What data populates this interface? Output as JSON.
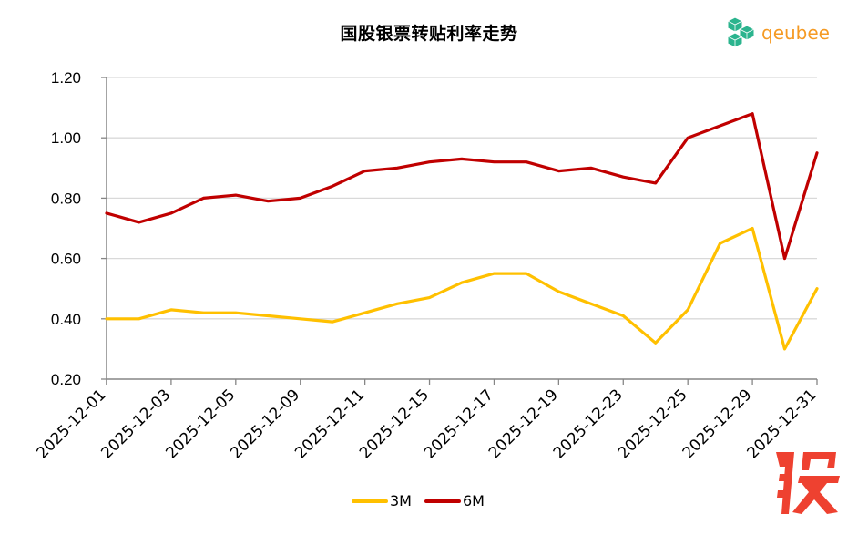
{
  "header": {
    "title": "国股银票转贴利率走势",
    "brand_name": "qeubee",
    "brand_icon": "cube-cluster-logo-icon"
  },
  "watermark": {
    "glyph": "股",
    "color": "#EE4130"
  },
  "colors": {
    "series_3M": "#FFC000",
    "series_6M": "#C00000",
    "gridline": "#D9D9D9",
    "axis": "#868686",
    "brand": "#F59A23",
    "logo": "#2BB48E"
  },
  "legend": {
    "items": [
      {
        "label": "3M",
        "color": "#FFC000"
      },
      {
        "label": "6M",
        "color": "#C00000"
      }
    ],
    "position": "bottom"
  },
  "chart_data": {
    "type": "line",
    "title": "国股银票转贴利率走势",
    "xlabel": "",
    "ylabel": "",
    "ylim": [
      0.2,
      1.2
    ],
    "yticks": [
      "1.20",
      "1.00",
      "0.80",
      "0.60",
      "0.40",
      "0.20"
    ],
    "grid": "horizontal",
    "legend_position": "bottom",
    "x": [
      "2025-12-01",
      "2025-12-02",
      "2025-12-03",
      "2025-12-04",
      "2025-12-05",
      "2025-12-08",
      "2025-12-09",
      "2025-12-10",
      "2025-12-11",
      "2025-12-12",
      "2025-12-15",
      "2025-12-16",
      "2025-12-17",
      "2025-12-18",
      "2025-12-19",
      "2025-12-22",
      "2025-12-23",
      "2025-12-24",
      "2025-12-25",
      "2025-12-26",
      "2025-12-29",
      "2025-12-30",
      "2025-12-31"
    ],
    "x_tick_labels": [
      "2025-12-01",
      "2025-12-03",
      "2025-12-05",
      "2025-12-09",
      "2025-12-11",
      "2025-12-15",
      "2025-12-17",
      "2025-12-19",
      "2025-12-23",
      "2025-12-25",
      "2025-12-29",
      "2025-12-31"
    ],
    "series": [
      {
        "name": "3M",
        "color": "#FFC000",
        "values": [
          0.4,
          0.4,
          0.43,
          0.42,
          0.42,
          0.41,
          0.4,
          0.39,
          0.42,
          0.45,
          0.47,
          0.52,
          0.55,
          0.55,
          0.49,
          0.45,
          0.41,
          0.32,
          0.43,
          0.65,
          0.7,
          0.3,
          0.5
        ]
      },
      {
        "name": "6M",
        "color": "#C00000",
        "values": [
          0.75,
          0.72,
          0.75,
          0.8,
          0.81,
          0.79,
          0.8,
          0.84,
          0.89,
          0.9,
          0.92,
          0.93,
          0.92,
          0.92,
          0.89,
          0.9,
          0.87,
          0.85,
          1.0,
          1.04,
          1.08,
          0.6,
          0.95
        ]
      }
    ]
  }
}
